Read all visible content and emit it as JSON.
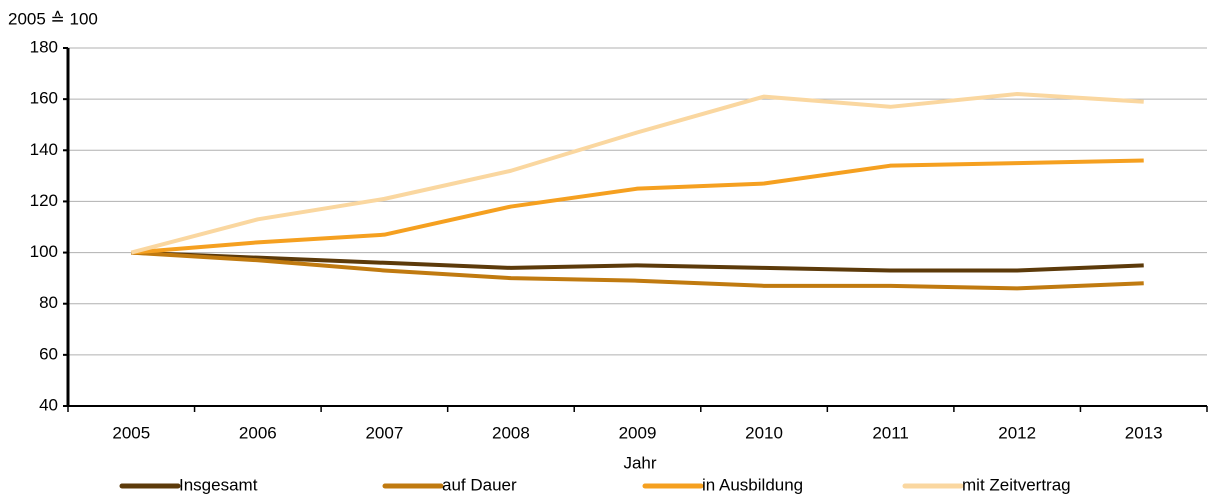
{
  "chart_data": {
    "type": "line",
    "y_label": "2005 ≙ 100",
    "x_label": "Jahr",
    "categories": [
      "2005",
      "2006",
      "2007",
      "2008",
      "2009",
      "2010",
      "2011",
      "2012",
      "2013"
    ],
    "series": [
      {
        "name": "Insgesamt",
        "color": "#5c3a0a",
        "values": [
          100,
          98,
          96,
          94,
          95,
          94,
          93,
          93,
          95
        ]
      },
      {
        "name": "auf Dauer",
        "color": "#c07a10",
        "values": [
          100,
          97,
          93,
          90,
          89,
          87,
          87,
          86,
          88
        ]
      },
      {
        "name": "in Ausbildung",
        "color": "#f5a020",
        "values": [
          100,
          104,
          107,
          118,
          125,
          127,
          134,
          135,
          136
        ]
      },
      {
        "name": "mit Zeitvertrag",
        "color": "#fad7a0",
        "values": [
          100,
          113,
          121,
          132,
          147,
          161,
          157,
          162,
          159
        ]
      }
    ],
    "ylim": [
      40,
      180
    ],
    "yticks": [
      40,
      60,
      80,
      100,
      120,
      140,
      160,
      180
    ],
    "grid": true,
    "legend": "bottom"
  }
}
